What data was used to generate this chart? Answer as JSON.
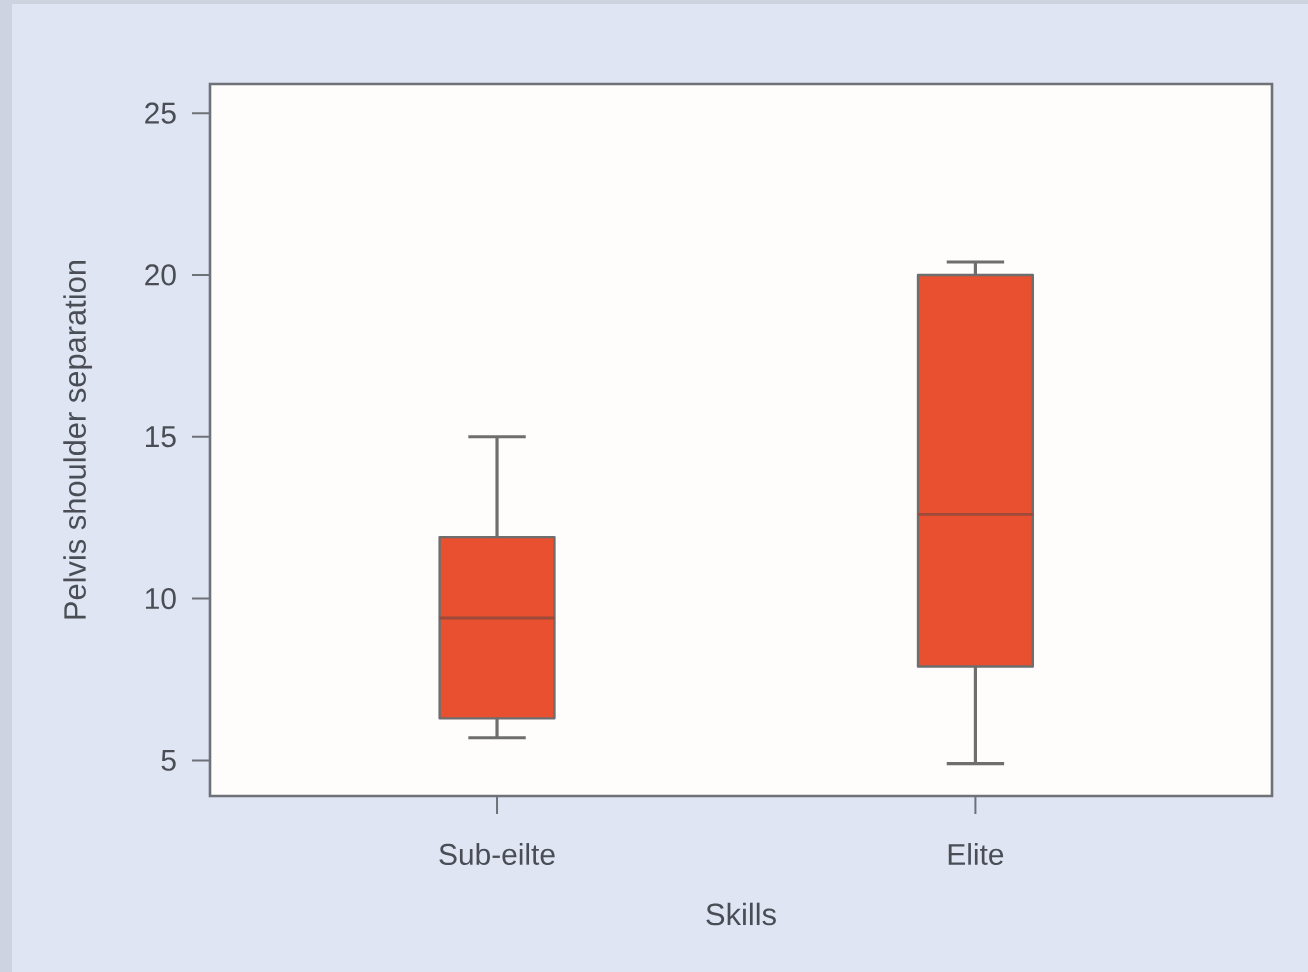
{
  "chart_data": {
    "type": "box",
    "xlabel": "Skills",
    "ylabel": "Pelvis shoulder separation",
    "categories": [
      "Sub-eilte",
      "Elite"
    ],
    "boxes": [
      {
        "low": 5.7,
        "q1": 6.3,
        "median": 9.4,
        "q3": 11.9,
        "high": 15.0
      },
      {
        "low": 4.9,
        "q1": 7.9,
        "median": 12.6,
        "q3": 20.0,
        "high": 20.4
      }
    ],
    "color": "#e9502f",
    "ylim": [
      3.9,
      25.9
    ],
    "yticks": [
      5,
      10,
      15,
      20,
      25
    ]
  }
}
